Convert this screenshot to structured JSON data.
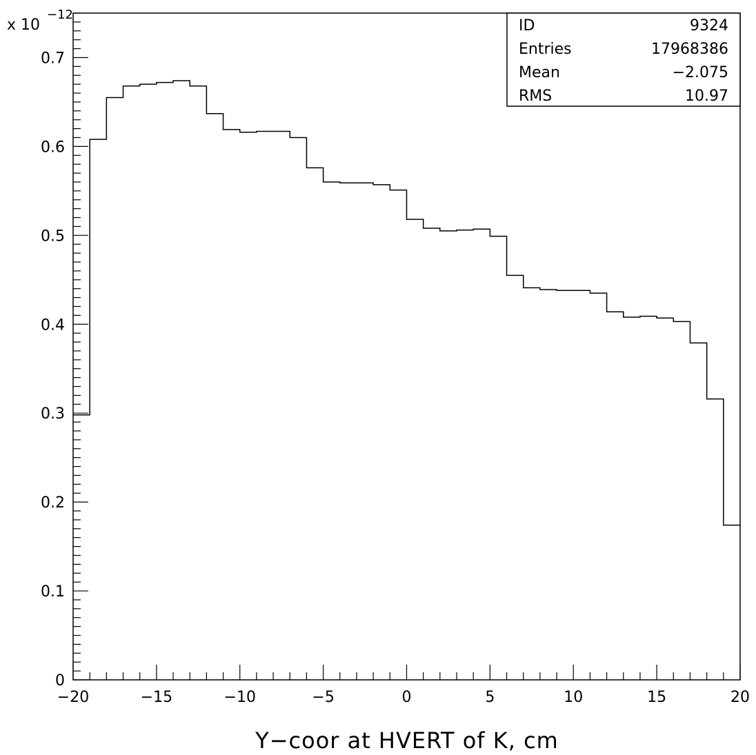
{
  "chart_data": {
    "type": "histogram",
    "xlabel": "Y−coor at HVERT of K,  cm",
    "ylabel": "",
    "y_multiplier_label": "x 10",
    "y_multiplier_exponent": "−12",
    "xlim": [
      -20,
      20
    ],
    "ylim": [
      0,
      0.75
    ],
    "x_ticks": [
      -20,
      -15,
      -10,
      -5,
      0,
      5,
      10,
      15,
      20
    ],
    "x_tick_labels": [
      "−20",
      "−15",
      "−10",
      "−5",
      "0",
      "5",
      "10",
      "15",
      "20"
    ],
    "y_ticks": [
      0,
      0.1,
      0.2,
      0.3,
      0.4,
      0.5,
      0.6,
      0.7
    ],
    "y_tick_labels": [
      "0",
      "0.1",
      "0.2",
      "0.3",
      "0.4",
      "0.5",
      "0.6",
      "0.7"
    ],
    "bin_edges": [
      -20,
      -19,
      -18,
      -17,
      -16,
      -15,
      -14,
      -13,
      -12,
      -11,
      -10,
      -9,
      -8,
      -7,
      -6,
      -5,
      -4,
      -3,
      -2,
      -1,
      0,
      1,
      2,
      3,
      4,
      5,
      6,
      7,
      8,
      9,
      10,
      11,
      12,
      13,
      14,
      15,
      16,
      17,
      18,
      19,
      20
    ],
    "values": [
      0.298,
      0.608,
      0.655,
      0.668,
      0.67,
      0.672,
      0.674,
      0.668,
      0.637,
      0.619,
      0.616,
      0.617,
      0.617,
      0.61,
      0.576,
      0.56,
      0.559,
      0.559,
      0.557,
      0.551,
      0.518,
      0.508,
      0.505,
      0.506,
      0.507,
      0.499,
      0.455,
      0.441,
      0.439,
      0.438,
      0.438,
      0.435,
      0.414,
      0.408,
      0.409,
      0.407,
      0.403,
      0.379,
      0.316,
      0.174
    ],
    "grid": false
  },
  "stats_box": {
    "rows": [
      {
        "label": "ID",
        "value": "9324"
      },
      {
        "label": "Entries",
        "value": "17968386"
      },
      {
        "label": "Mean",
        "value": "−2.075"
      },
      {
        "label": "RMS",
        "value": "10.97"
      }
    ]
  }
}
